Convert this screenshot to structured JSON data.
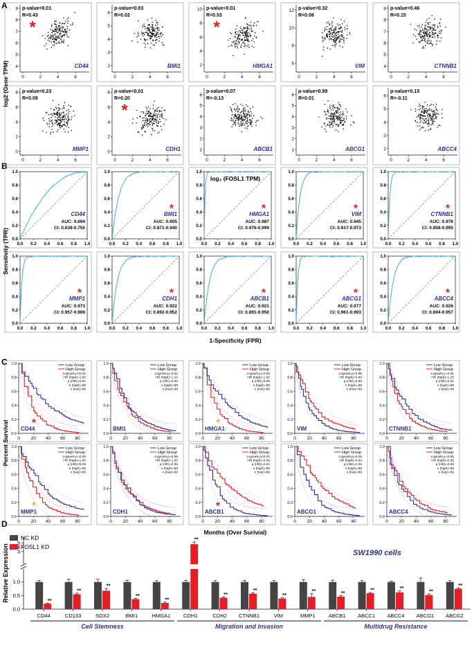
{
  "colors": {
    "blue": "#2e3192",
    "red": "#e31e24",
    "cyan": "#4fb3d9",
    "gray": "#454545",
    "orange": "#f7b733",
    "axis": "#111111"
  },
  "panel_labels": [
    "A",
    "B",
    "C",
    "D"
  ],
  "chart_data": [
    {
      "type": "scatter",
      "panel": "A",
      "ylabel": "log2 (Gene TPM)",
      "xlabel": "log₂ (FOSL1 TPM)",
      "xticks": [
        "0",
        "2",
        "4",
        "6"
      ],
      "subplots": [
        {
          "gene": "CD44",
          "pvalue": "p-value<0.01",
          "r": "R=0.43",
          "star": true,
          "yticks": [
            "4",
            "5",
            "6",
            "7",
            "8",
            "9"
          ],
          "ylim": [
            3.5,
            9.3
          ],
          "trend": 0.45
        },
        {
          "gene": "BMI1",
          "pvalue": "p-value=0.83",
          "r": "R=0.02",
          "star": false,
          "yticks": [
            "2",
            "3",
            "4",
            "5",
            "6"
          ],
          "ylim": [
            1.5,
            6.6
          ],
          "trend": 0.0
        },
        {
          "gene": "HMGA1",
          "pvalue": "p-value<0.01",
          "r": "R=0.53",
          "star": true,
          "yticks": [
            "2",
            "4",
            "6",
            "8",
            "10"
          ],
          "ylim": [
            1.0,
            10.6
          ],
          "trend": 0.55
        },
        {
          "gene": "VIM",
          "pvalue": "p-value=0.32",
          "r": "R=0.08",
          "star": false,
          "yticks": [
            "6",
            "8",
            "10",
            "12"
          ],
          "ylim": [
            5.0,
            12.6
          ],
          "trend": 0.05
        },
        {
          "gene": "CTNNB1",
          "pvalue": "p-value=0.46",
          "r": "R=0.15",
          "star": false,
          "yticks": [
            "4",
            "5",
            "6",
            "7",
            "8",
            "9"
          ],
          "ylim": [
            3.5,
            9.3
          ],
          "trend": 0.1
        },
        {
          "gene": "MMP1",
          "pvalue": "p-value=0.23",
          "r": "R=0.09",
          "star": false,
          "yticks": [
            "0",
            "2",
            "4",
            "6",
            "8"
          ],
          "ylim": [
            -0.5,
            8.6
          ],
          "trend": 0.05
        },
        {
          "gene": "CDH1",
          "pvalue": "p-value<0.01",
          "r": "R=0.20",
          "star": true,
          "yticks": [
            "0",
            "2",
            "4",
            "6",
            "8"
          ],
          "ylim": [
            -0.5,
            8.6
          ],
          "trend": 0.2
        },
        {
          "gene": "ABCB1",
          "pvalue": "p-value=0.07",
          "r": "R=-0.13",
          "star": false,
          "yticks": [
            "1",
            "2",
            "3",
            "4",
            "5",
            "6"
          ],
          "ylim": [
            0.5,
            6.6
          ],
          "trend": -0.1
        },
        {
          "gene": "ABCG1",
          "pvalue": "p-value=0.99",
          "r": "R=0.01",
          "star": false,
          "yticks": [
            "1",
            "2",
            "3",
            "4",
            "5",
            "6"
          ],
          "ylim": [
            0.5,
            6.6
          ],
          "trend": 0.0
        },
        {
          "gene": "ABCC4",
          "pvalue": "p-value=0.15",
          "r": "R=-0.11",
          "star": false,
          "yticks": [
            "2",
            "3",
            "4",
            "5",
            "6"
          ],
          "ylim": [
            1.5,
            6.6
          ],
          "trend": -0.1
        }
      ]
    },
    {
      "type": "line",
      "panel": "B",
      "ylabel": "Sensitivity (TPR)",
      "xlabel": "1-Specificity (FPR)",
      "ticks": [
        "0.0",
        "0.2",
        "0.4",
        "0.6",
        "0.8",
        "1.0"
      ],
      "subplots": [
        {
          "gene": "CD44",
          "auc": "AUC: 0.694",
          "ci": "CI: 0.638-0.750",
          "star": false
        },
        {
          "gene": "BMI1",
          "auc": "AUC: 0.905",
          "ci": "CI: 0.871-0.940",
          "star": true
        },
        {
          "gene": "HMGA1",
          "auc": "AUC: 0.987",
          "ci": "CI: 0.976-0.999",
          "star": true
        },
        {
          "gene": "VIM",
          "auc": "AUC: 0.945",
          "ci": "CI: 0.917-0.973",
          "star": true
        },
        {
          "gene": "CTNNB1",
          "auc": "AUC: 0.976",
          "ci": "CI: 0.958-0.995",
          "star": true
        },
        {
          "gene": "MMP1",
          "auc": "AUC: 0.973",
          "ci": "CI: 0.957-0.989",
          "star": true
        },
        {
          "gene": "CDH1",
          "auc": "AUC: 0.922",
          "ci": "CI: 0.892-0.952",
          "star": true
        },
        {
          "gene": "ABCB1",
          "auc": "AUC: 0.921",
          "ci": "CI: 0.891-0.950",
          "star": true
        },
        {
          "gene": "ABCG1",
          "auc": "AUC: 0.977",
          "ci": "CI: 0.961-0.993",
          "star": true
        },
        {
          "gene": "ABCC4",
          "auc": "AUC: 0.926",
          "ci": "CI: 0.894-0.957",
          "star": true
        }
      ]
    },
    {
      "type": "line",
      "panel": "C",
      "ylabel": "Percent Survival",
      "xlabel": "Months (Over Surivial)",
      "xticks": [
        "0",
        "20",
        "40",
        "60",
        "80"
      ],
      "yticks": [
        "0.0",
        "0.2",
        "0.4",
        "0.6",
        "0.8",
        "1.0"
      ],
      "legend": [
        "Low Group",
        "High Group"
      ],
      "subplots": [
        {
          "gene": "CD44",
          "star": "red",
          "stats": [
            "Logrank p<0.01",
            "HR (high)=1.80",
            "p (HR)=0.01",
            "n (high)=89",
            "n (low)=89"
          ]
        },
        {
          "gene": "BMI1",
          "star": "",
          "stats": [
            "Logrank p=0.62",
            "HR (high)=1.10",
            "p (HR)=0.62",
            "n (high)=89",
            "n (low)=89"
          ]
        },
        {
          "gene": "HMGA1",
          "star": "orange",
          "stats": [
            "Logrank p=0.05",
            "HR (high)=1.50",
            "p (HR)=0.05",
            "n (high)=89",
            "n (low)=89"
          ]
        },
        {
          "gene": "VIM",
          "star": "",
          "stats": [
            "Logrank p=0.56",
            "HR (high)=0.89",
            "p (HR)=0.56",
            "n (high)=89",
            "n (low)=89"
          ]
        },
        {
          "gene": "CTNNB1",
          "star": "",
          "stats": [
            "Logrank p=0.31",
            "HR (high)=1.20",
            "p (HR)=0.31",
            "n (high)=89",
            "n (low)=89"
          ]
        },
        {
          "gene": "MMP1",
          "star": "orange",
          "stats": [
            "Logrank p=0.05",
            "HR (high)=1.60",
            "p (HR)<0.05",
            "n (high)=89",
            "n (low)=89"
          ]
        },
        {
          "gene": "CDH1",
          "star": "",
          "stats": [
            "Logrank p=0.95",
            "HR (high)=1.00",
            "p (HR)=0.95",
            "n (high)=89",
            "n (low)=89"
          ]
        },
        {
          "gene": "ABCB1",
          "star": "red",
          "stats": [
            "Logrank p<0.01",
            "HR (high)=0.56",
            "p (HR)=0.01",
            "n (high)=89",
            "n (low)=89"
          ]
        },
        {
          "gene": "ABCG1",
          "star": "",
          "stats": [
            "Logrank p=0.05",
            "HR (high)=0.64",
            "p (HR)=0.05",
            "n (high)=89",
            "n (low)=89"
          ]
        },
        {
          "gene": "ABCC4",
          "star": "",
          "stats": [
            "Logrank p=0.95",
            "HR (high)=0.99",
            "p (HR)=0.95",
            "n (high)=89",
            "n (low)=89"
          ]
        }
      ]
    },
    {
      "type": "bar",
      "panel": "D",
      "title": "SW1990 cells",
      "ylabel": "Relative Expression",
      "legend": [
        "NC KD",
        "FOSL1 KD"
      ],
      "categories": [
        "CD44",
        "CD133",
        "SOX2",
        "BMI1",
        "HMGA1",
        "CDH1",
        "CDH2",
        "CTNNB1",
        "VIM",
        "MMP1",
        "ABCB1",
        "ABCC1",
        "ABCC4",
        "ABCG1",
        "ABCG2"
      ],
      "series": [
        {
          "name": "NC KD",
          "values": [
            1.0,
            1.0,
            1.0,
            1.0,
            1.0,
            1.0,
            1.0,
            1.0,
            1.0,
            1.0,
            1.0,
            1.0,
            1.0,
            1.0,
            1.0
          ],
          "errors": [
            0.05,
            0.1,
            0.1,
            0.06,
            0.05,
            0.06,
            0.05,
            0.05,
            0.05,
            0.08,
            0.07,
            0.05,
            0.03,
            0.15,
            0.05
          ]
        },
        {
          "name": "FOSL1 KD",
          "values": [
            0.2,
            0.55,
            0.68,
            0.37,
            0.23,
            4.7,
            0.42,
            0.57,
            0.39,
            0.45,
            0.46,
            0.59,
            0.62,
            0.52,
            0.75
          ],
          "errors": [
            0.02,
            0.04,
            0.08,
            0.03,
            0.03,
            0.5,
            0.03,
            0.03,
            0.03,
            0.12,
            0.04,
            0.02,
            0.05,
            0.04,
            0.03
          ]
        }
      ],
      "significance": [
        "**",
        "**",
        "**",
        "**",
        "**",
        "**",
        "**",
        "**",
        "**",
        "**",
        "**",
        "**",
        "**",
        "**",
        "**"
      ],
      "yticks_low": [
        "0.0",
        "0.5",
        "1.0"
      ],
      "yticks_high": [
        "3",
        "4",
        "5"
      ],
      "groups": [
        "Cell Stemness",
        "Migration and Invasion",
        "Multidrug Resistance"
      ]
    }
  ]
}
